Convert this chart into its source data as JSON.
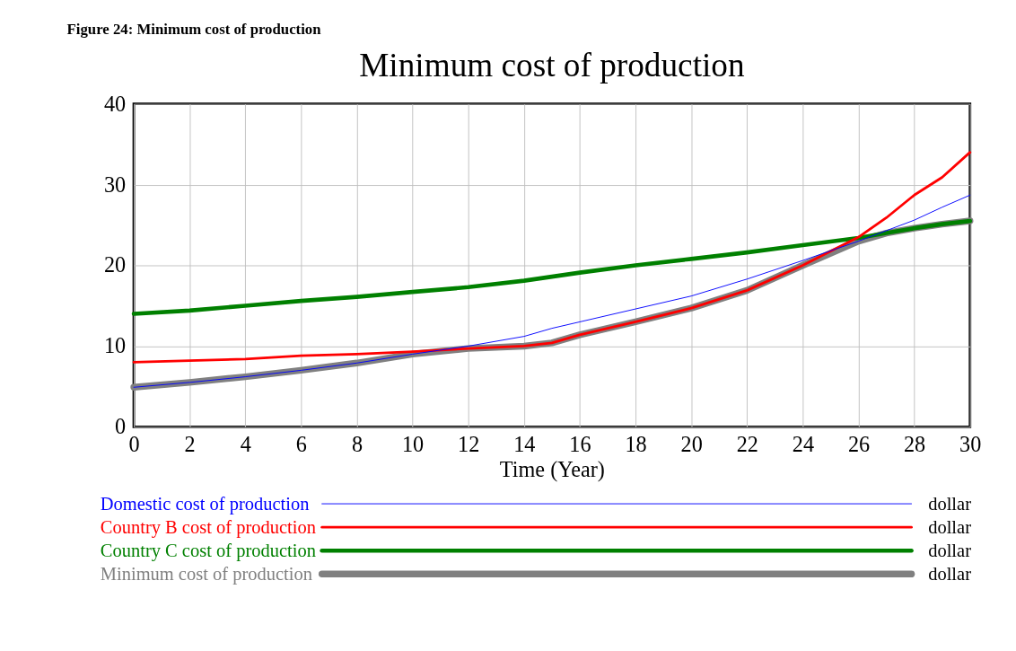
{
  "chart_data": {
    "type": "line",
    "title": "Minimum cost of production",
    "xlabel": "Time (Year)",
    "x": [
      0,
      2,
      4,
      6,
      8,
      10,
      12,
      14,
      15,
      16,
      18,
      20,
      22,
      24,
      26,
      27,
      28,
      29,
      30
    ],
    "series": [
      {
        "name": "Domestic cost of production",
        "color": "#0000ff",
        "values": [
          4.9,
          5.5,
          6.2,
          7.0,
          7.9,
          9.0,
          10.0,
          11.2,
          12.2,
          13.0,
          14.6,
          16.2,
          18.3,
          20.6,
          23.0,
          24.3,
          25.6,
          27.2,
          28.7
        ]
      },
      {
        "name": "Country B cost of production",
        "color": "#ff0000",
        "values": [
          8.0,
          8.2,
          8.4,
          8.8,
          9.0,
          9.3,
          9.7,
          10.0,
          10.4,
          11.4,
          13.0,
          14.7,
          16.9,
          20.0,
          23.5,
          25.9,
          28.7,
          30.9,
          34.0
        ]
      },
      {
        "name": "Country C cost of production",
        "color": "#008000",
        "values": [
          14.0,
          14.4,
          15.0,
          15.6,
          16.1,
          16.7,
          17.3,
          18.1,
          18.6,
          19.1,
          20.0,
          20.8,
          21.6,
          22.5,
          23.4,
          24.0,
          24.6,
          25.1,
          25.5
        ]
      },
      {
        "name": "Minimum cost of production",
        "color": "#808080",
        "values": [
          4.9,
          5.5,
          6.2,
          7.0,
          7.9,
          9.0,
          9.7,
          10.0,
          10.4,
          11.4,
          13.0,
          14.7,
          16.9,
          20.0,
          23.0,
          24.0,
          24.6,
          25.1,
          25.5
        ]
      }
    ],
    "xlim": [
      0,
      30
    ],
    "xticks": [
      0,
      2,
      4,
      6,
      8,
      10,
      12,
      14,
      16,
      18,
      20,
      22,
      24,
      26,
      28,
      30
    ],
    "ylim": [
      0,
      40
    ],
    "yticks": [
      0,
      10,
      20,
      30,
      40
    ],
    "grid": true,
    "legend": "bottom",
    "line_style": "solid",
    "marker": "none",
    "annotations": [
      "Figure 24: Minimum cost of production",
      "dollar",
      "dollar",
      "dollar",
      "dollar"
    ]
  }
}
